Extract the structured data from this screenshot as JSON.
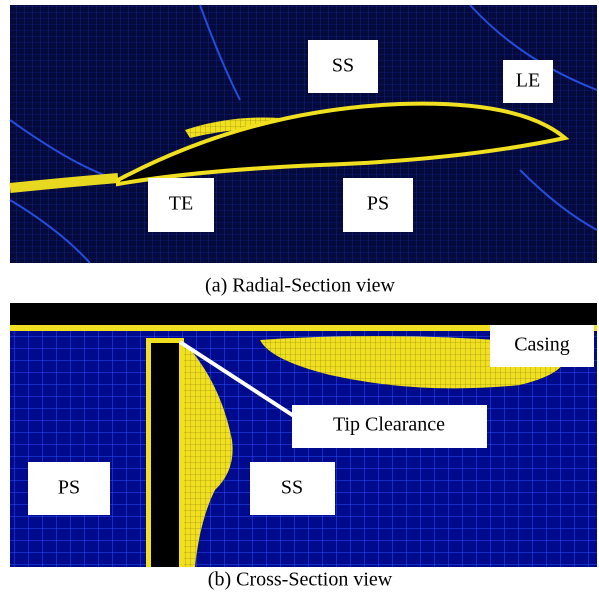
{
  "panels": [
    {
      "caption": "(a) Radial-Section view",
      "labels": [
        "SS",
        "LE",
        "TE",
        "PS"
      ]
    },
    {
      "caption": "(b) Cross-Section view",
      "labels": [
        "Casing",
        "Tip Clearance",
        "PS",
        "SS"
      ]
    }
  ]
}
